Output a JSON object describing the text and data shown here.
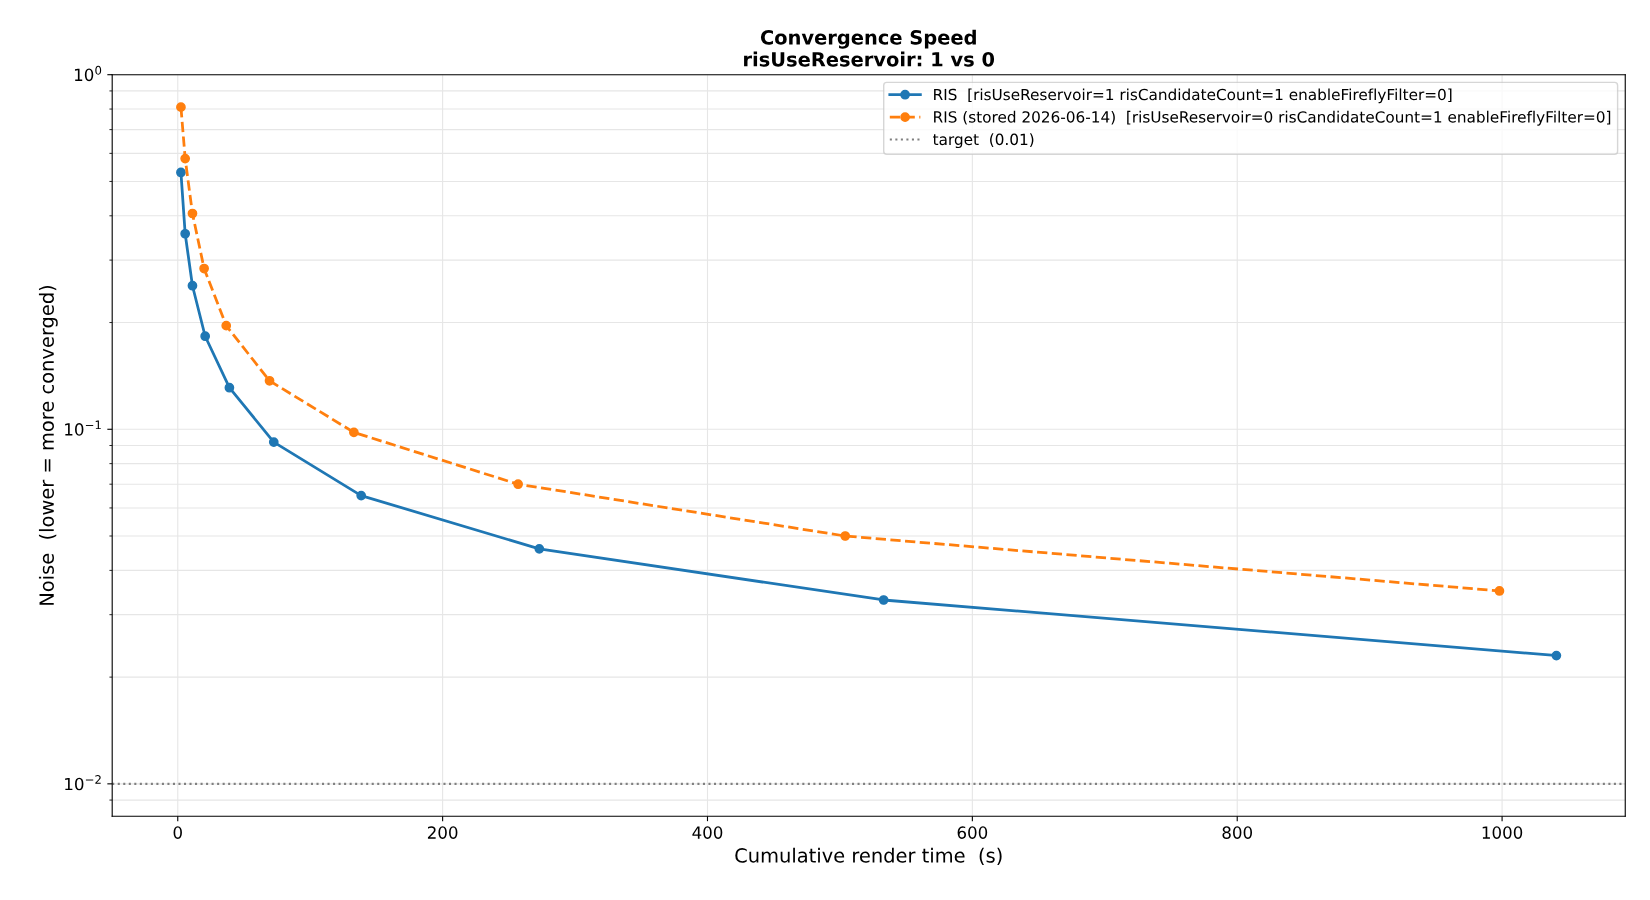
{
  "chart_data": {
    "type": "line",
    "title": "Convergence Speed\nrisUseReservoir: 1 vs 0",
    "xlabel": "Cumulative render time  (s)",
    "ylabel": "Noise  (lower = more converged)",
    "series": [
      {
        "name": "RIS  [risUseReservoir=1 risCandidateCount=1 enableFireflyFilter=0]",
        "color": "#1f77b4",
        "line_style": "solid",
        "x": [
          2.4,
          5.6,
          11.1,
          20.7,
          39,
          72.5,
          138.5,
          273,
          533,
          1041
        ],
        "values": [
          0.53,
          0.356,
          0.254,
          0.183,
          0.131,
          0.092,
          0.065,
          0.046,
          0.033,
          0.023
        ]
      },
      {
        "name": "RIS (stored 2026-06-14)  [risUseReservoir=0 risCandidateCount=1 enableFireflyFilter=0]",
        "color": "#ff7f0e",
        "line_style": "dashed",
        "x": [
          2.4,
          5.6,
          11.1,
          19.9,
          36.6,
          69.3,
          133,
          257,
          504,
          998
        ],
        "values": [
          0.81,
          0.58,
          0.406,
          0.284,
          0.196,
          0.137,
          0.098,
          0.07,
          0.05,
          0.035
        ]
      }
    ],
    "ref_lines": [
      {
        "axis": "y",
        "value": 0.01,
        "label": "target  (0.01)",
        "color": "#808080",
        "line_style": "dotted"
      }
    ],
    "log": "y",
    "xlim": [
      -49.5,
      1093
    ],
    "xticks": [
      0,
      200,
      400,
      600,
      800,
      1000
    ],
    "ylim": [
      0.0081,
      1
    ],
    "yticks": [
      {
        "value": 0.01,
        "label": "10$^{−2}$"
      },
      {
        "value": 0.1,
        "label": "10$^{−1}$"
      },
      {
        "value": 1,
        "label": "10$^{0}$"
      }
    ],
    "grid": true,
    "legend": "top right",
    "marker": "circle"
  }
}
